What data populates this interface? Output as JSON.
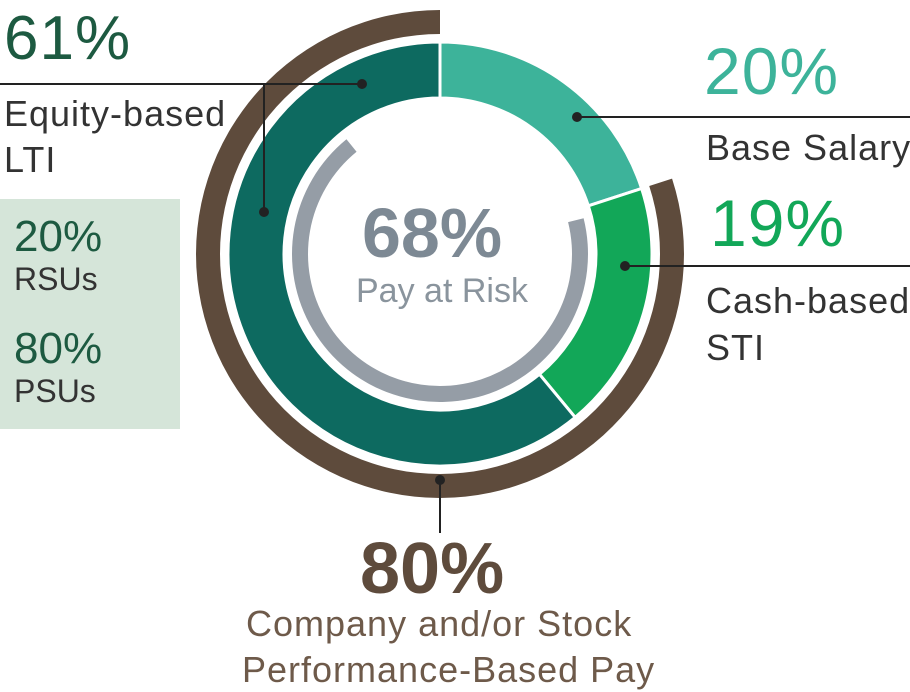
{
  "chart_data": {
    "type": "donut",
    "title": "Pay at Risk",
    "center": {
      "value": "68%",
      "label": "Pay at Risk"
    },
    "inner_ring": {
      "name": "Pay mix",
      "slices": [
        {
          "key": "base",
          "label": "Base Salary",
          "value": 20,
          "display": "20%",
          "color": "#3db39a"
        },
        {
          "key": "sti",
          "label": "Cash-based STI",
          "value": 19,
          "display": "19%",
          "color": "#12a758"
        },
        {
          "key": "ltie",
          "label": "Equity-based LTI",
          "value": 61,
          "display": "61%",
          "color": "#0d6a60"
        }
      ]
    },
    "outer_ring": {
      "name": "Company and/or Stock Performance-Based Pay",
      "value": 80,
      "display": "80%",
      "color": "#5e4b3c",
      "covers": [
        "sti",
        "ltie"
      ]
    },
    "pay_at_risk_ring": {
      "value": 68,
      "display": "68%",
      "color": "#959da6"
    },
    "lti_mix": [
      {
        "label": "RSUs",
        "value": 20,
        "display": "20%"
      },
      {
        "label": "PSUs",
        "value": 80,
        "display": "80%"
      }
    ]
  },
  "labels": {
    "ltie_pct": "61%",
    "ltie_line1": "Equity-based",
    "ltie_line2": "LTI",
    "rsu_pct": "20%",
    "rsu_label": "RSUs",
    "psu_pct": "80%",
    "psu_label": "PSUs",
    "base_pct": "20%",
    "base_label": "Base Salary",
    "sti_pct": "19%",
    "sti_line1": "Cash-based",
    "sti_line2": "STI",
    "center_pct": "68%",
    "center_label": "Pay at Risk",
    "perf_pct": "80%",
    "perf_line1": "Company and/or Stock",
    "perf_line2": "Performance-Based Pay"
  }
}
